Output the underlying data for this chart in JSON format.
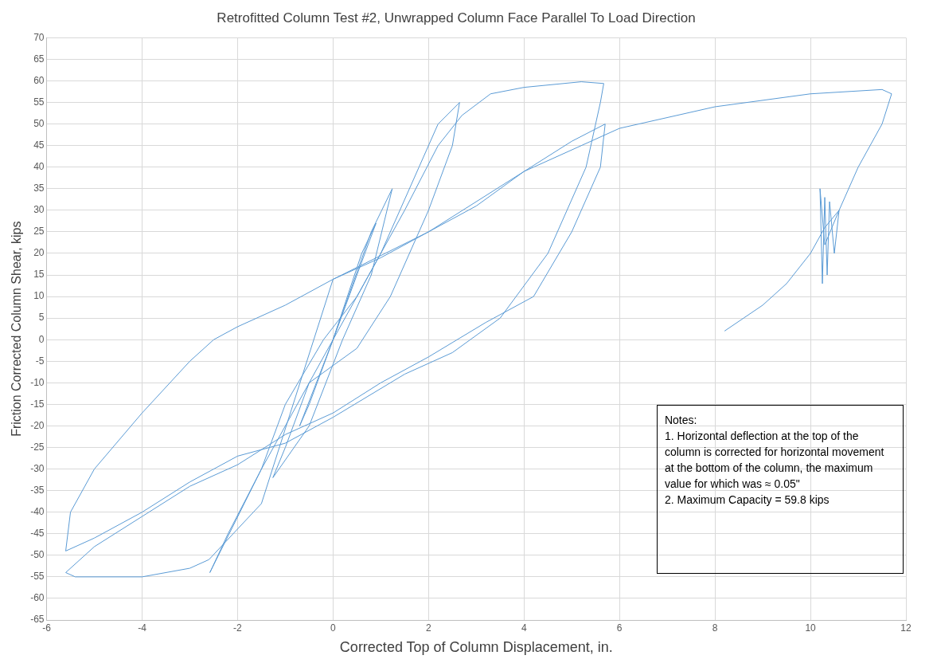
{
  "chart_data": {
    "type": "line",
    "title": "Retrofitted Column Test #2, Unwrapped Column Face Parallel To Load Direction",
    "xlabel": "Corrected Top of Column Displacement, in.",
    "ylabel": "Friction Corrected Column Shear, kips",
    "xlim": [
      -6,
      12
    ],
    "xticks": [
      -6,
      -4,
      -2,
      0,
      2,
      4,
      6,
      8,
      10,
      12
    ],
    "ylim": [
      -65,
      70
    ],
    "yticks": [
      -65,
      -60,
      -55,
      -50,
      -45,
      -40,
      -35,
      -30,
      -25,
      -20,
      -15,
      -10,
      -5,
      0,
      5,
      10,
      15,
      20,
      25,
      30,
      35,
      40,
      45,
      50,
      55,
      60,
      65,
      70
    ],
    "grid": true,
    "legend": false,
    "marker": "none",
    "line_style": "solid",
    "series": [
      {
        "color": "#5b9bd5",
        "x": [
          0,
          0.3,
          0.6,
          0.9,
          0.5,
          0,
          -0.5,
          -0.7,
          0,
          0.8,
          1.24,
          0.8,
          0.2,
          -0.5,
          -1.26,
          -1.0,
          -0.5,
          0,
          0.5,
          1.0,
          1.8,
          2.2,
          2.65,
          2.5,
          2.0,
          1.2,
          0.5,
          -0.5,
          -1.5,
          -2.2,
          -2.58,
          -2.4,
          -1.5,
          -1.0,
          -0.2,
          0.5,
          1.5,
          2.2,
          2.7,
          3.3,
          4.0,
          5.2,
          5.67,
          5.6,
          5.3,
          4.5,
          3.5,
          2.5,
          1.5,
          0,
          -1,
          -2,
          -3,
          -4,
          -5,
          -5.6,
          -5.5,
          -5,
          -4,
          -3,
          -2.5,
          -2,
          -1,
          0,
          1,
          2,
          3,
          4,
          5,
          5.7,
          5.6,
          5.0,
          4.2,
          3.2,
          2,
          1,
          0,
          -1,
          -2,
          -3,
          -4,
          -5,
          -5.6,
          -5.4,
          -4,
          -3,
          -2.6,
          -1.5,
          0,
          2,
          4,
          6,
          8,
          10,
          11.5,
          11.7,
          11.5,
          11.0,
          10.6,
          10.3,
          10.2,
          10.25,
          10.3,
          10.35,
          10.4,
          10.5,
          10.6,
          10.3,
          10.0,
          9.5,
          9.0,
          8.6,
          8.2
        ],
        "values": [
          0,
          10,
          20,
          27,
          15,
          0,
          -15,
          -20,
          0,
          25,
          35,
          15,
          0,
          -20,
          -32,
          -25,
          -10,
          0,
          10,
          20,
          40,
          50,
          55,
          45,
          30,
          10,
          -2,
          -10,
          -30,
          -45,
          -54,
          -50,
          -30,
          -15,
          0,
          10,
          30,
          45,
          52,
          57,
          58.5,
          59.8,
          59.4,
          55,
          40,
          20,
          5,
          -3,
          -8,
          -18,
          -24,
          -27,
          -33,
          -40,
          -46,
          -49,
          -40,
          -30,
          -17,
          -5,
          0,
          3,
          8,
          14,
          19,
          25,
          31,
          39,
          46,
          50,
          40,
          25,
          10,
          4,
          -4,
          -10,
          -17,
          -22,
          -29,
          -34,
          -41,
          -48,
          -54,
          -55,
          -55,
          -53,
          -51,
          -38,
          14,
          25,
          39,
          49,
          54,
          57,
          58,
          57,
          50,
          40,
          30,
          22,
          35,
          13,
          33,
          15,
          32,
          20,
          30,
          26,
          20,
          13,
          8,
          5,
          2
        ]
      }
    ],
    "annotations": [
      "Notes:",
      "1.  Horizontal deflection at the top of the column is corrected for horizontal movement at the bottom of the column, the maximum value for which was ≈ 0.05\"",
      "2. Maximum Capacity = 59.8 kips"
    ]
  }
}
